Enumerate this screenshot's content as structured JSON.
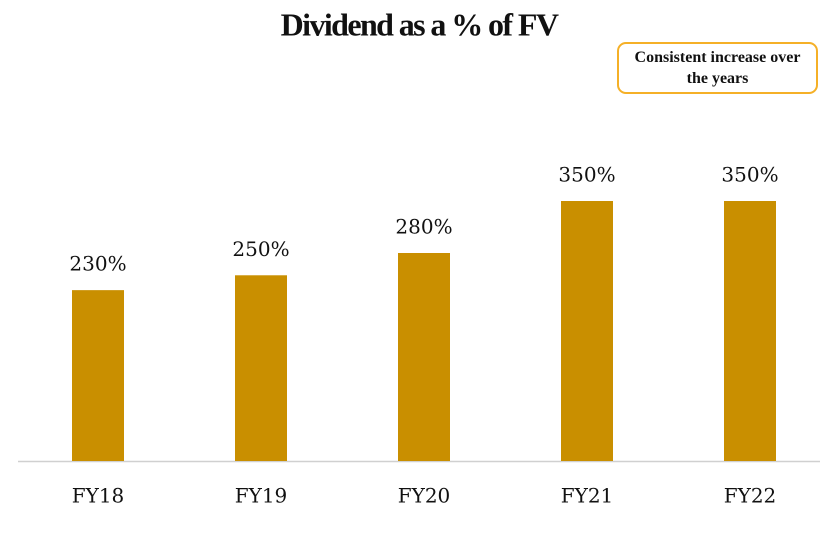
{
  "chart_data": {
    "type": "bar",
    "title": "Dividend as a % of FV",
    "annotation": "Consistent increase over the years",
    "categories": [
      "FY18",
      "FY19",
      "FY20",
      "FY21",
      "FY22"
    ],
    "values": [
      230,
      250,
      280,
      350,
      350
    ],
    "value_labels": [
      "230%",
      "250%",
      "280%",
      "350%",
      "350%"
    ],
    "color": "#c98f00"
  }
}
